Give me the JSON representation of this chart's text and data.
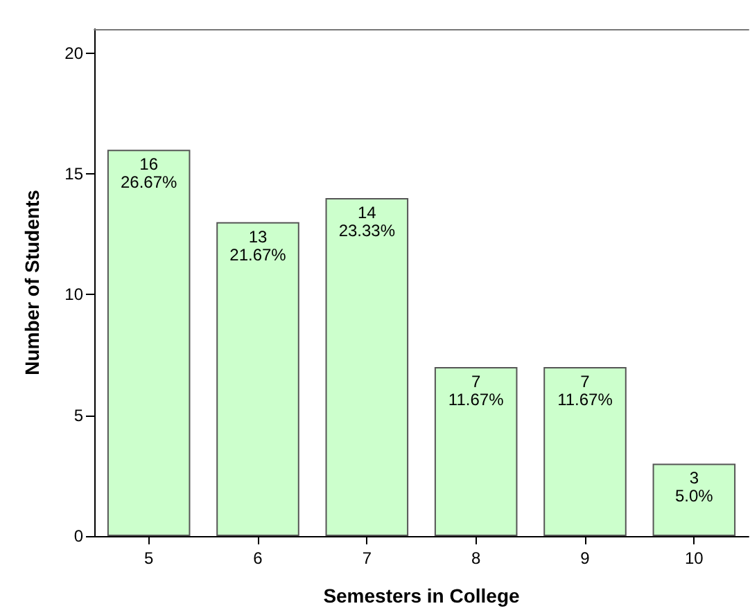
{
  "chart_data": {
    "type": "bar",
    "xlabel": "Semesters in College",
    "ylabel": "Number of Students",
    "categories": [
      "5",
      "6",
      "7",
      "8",
      "9",
      "10"
    ],
    "values": [
      16,
      13,
      14,
      7,
      7,
      3
    ],
    "value_labels": [
      "16\n26.67%",
      "13\n21.67%",
      "14\n23.33%",
      "7\n11.67%",
      "7\n11.67%",
      "3\n5.0%"
    ],
    "color": "#ccffcc",
    "ylim": [
      0,
      21
    ],
    "yticks": [
      0,
      5,
      10,
      15,
      20
    ],
    "grid": false
  }
}
